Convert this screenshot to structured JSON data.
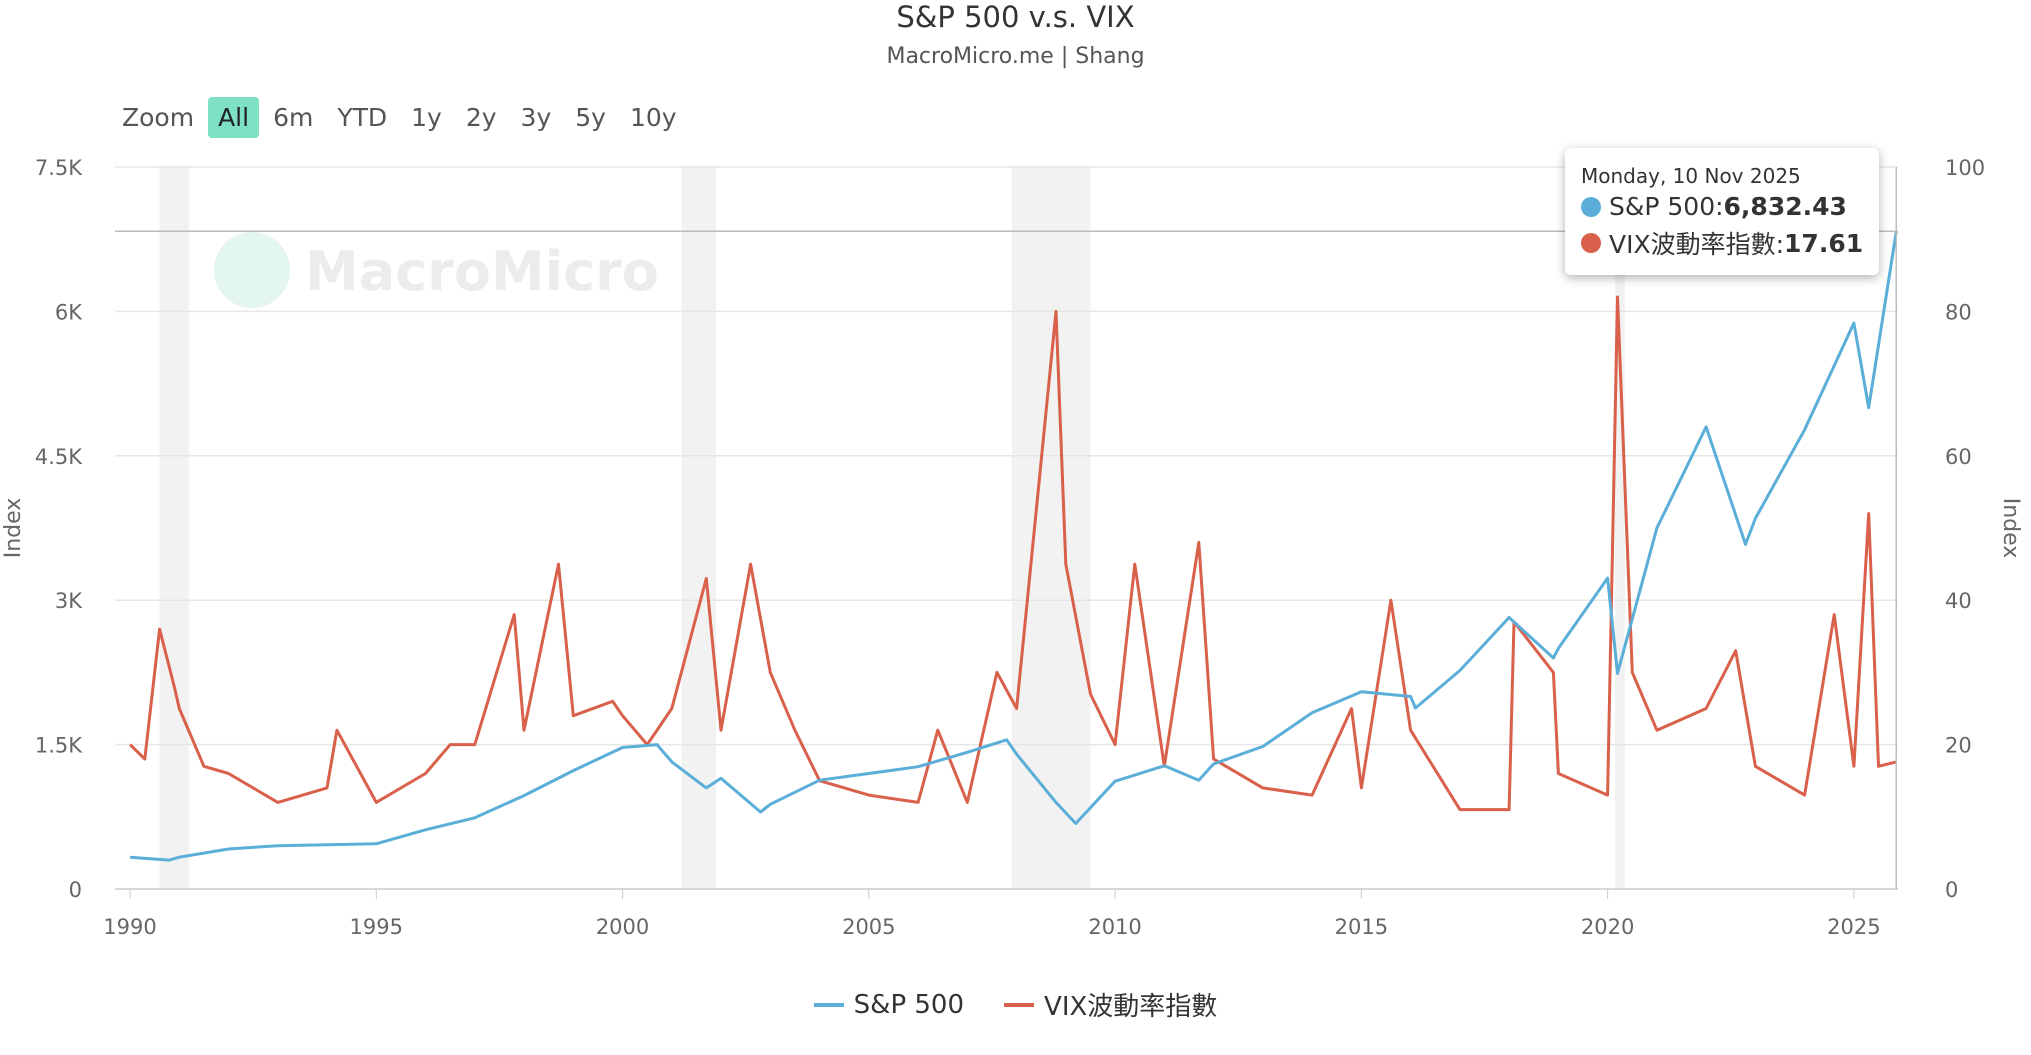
{
  "title": "S&P 500 v.s. VIX",
  "subtitle": "MacroMicro.me | Shang",
  "watermark": "MacroMicro",
  "range_selector": {
    "label": "Zoom",
    "buttons": [
      "All",
      "6m",
      "YTD",
      "1y",
      "2y",
      "3y",
      "5y",
      "10y"
    ],
    "selected": "All"
  },
  "tooltip": {
    "date": "Monday, 10 Nov 2025",
    "sp_label": "S&P 500: ",
    "sp_value": "6,832.43",
    "vix_label": "VIX波動率指數: ",
    "vix_value": "17.61"
  },
  "colors": {
    "sp500": "#5aaed8",
    "vix": "#d9604a",
    "recession": "#f2f2f2",
    "selected_button": "#7ee0c4"
  },
  "chart_data": {
    "type": "line",
    "x_ticks": [
      "1990",
      "1995",
      "2000",
      "2005",
      "2010",
      "2015",
      "2020",
      "2025"
    ],
    "xlim": [
      1990,
      2026.2
    ],
    "y_left": {
      "label": "Index",
      "ticks": [
        "0",
        "1.5K",
        "3K",
        "4.5K",
        "6K",
        "7.5K"
      ],
      "range": [
        0,
        7500
      ]
    },
    "y_right": {
      "label": "Index",
      "ticks": [
        "0",
        "20",
        "40",
        "60",
        "80",
        "100"
      ],
      "range": [
        0,
        100
      ]
    },
    "grid": true,
    "legend_placement": "bottom",
    "recession_bands": [
      [
        1990.6,
        1991.2
      ],
      [
        2001.2,
        2001.9
      ],
      [
        2007.9,
        2009.5
      ],
      [
        2020.15,
        2020.35
      ]
    ],
    "series": [
      {
        "name": "S&P 500",
        "axis": "left",
        "x": [
          1990,
          1990.8,
          1991,
          1992,
          1993,
          1994,
          1995,
          1996,
          1997,
          1998,
          1999,
          2000,
          2000.7,
          2001,
          2001.7,
          2002,
          2002.8,
          2003,
          2004,
          2005,
          2006,
          2007,
          2007.8,
          2008,
          2008.8,
          2009.2,
          2010,
          2011,
          2011.7,
          2012,
          2013,
          2014,
          2015,
          2016,
          2016.1,
          2017,
          2018,
          2018.9,
          2019,
          2020,
          2020.2,
          2021,
          2022,
          2022.8,
          2023,
          2024,
          2025,
          2025.3,
          2025.86
        ],
        "y": [
          330,
          300,
          330,
          415,
          450,
          460,
          470,
          615,
          740,
          970,
          1230,
          1470,
          1500,
          1320,
          1050,
          1150,
          800,
          880,
          1130,
          1200,
          1270,
          1420,
          1550,
          1400,
          900,
          680,
          1120,
          1280,
          1130,
          1300,
          1480,
          1830,
          2050,
          2000,
          1880,
          2270,
          2820,
          2400,
          2500,
          3230,
          2240,
          3750,
          4800,
          3580,
          3850,
          4770,
          5880,
          5000,
          6832.43
        ]
      },
      {
        "name": "VIX波動率指數",
        "axis": "right",
        "x": [
          1990,
          1990.3,
          1990.6,
          1990.9,
          1991,
          1991.5,
          1992,
          1993,
          1994,
          1994.2,
          1995,
          1996,
          1996.5,
          1997,
          1997.8,
          1998,
          1998.7,
          1999,
          1999.8,
          2000,
          2000.5,
          2001,
          2001.7,
          2002,
          2002.6,
          2003,
          2003.5,
          2004,
          2005,
          2006,
          2006.4,
          2007,
          2007.6,
          2008,
          2008.8,
          2009,
          2009.5,
          2010,
          2010.4,
          2011,
          2011.7,
          2012,
          2013,
          2014,
          2014.8,
          2015,
          2015.6,
          2016,
          2017,
          2018,
          2018.1,
          2018.9,
          2019,
          2020,
          2020.2,
          2020.5,
          2021,
          2022,
          2022.6,
          2023,
          2024,
          2024.6,
          2025,
          2025.3,
          2025.5,
          2025.86
        ],
        "y": [
          20,
          18,
          36,
          28,
          25,
          17,
          16,
          12,
          14,
          22,
          12,
          16,
          20,
          20,
          38,
          22,
          45,
          24,
          26,
          24,
          20,
          25,
          43,
          22,
          45,
          30,
          22,
          15,
          13,
          12,
          22,
          12,
          30,
          25,
          80,
          45,
          27,
          20,
          45,
          17,
          48,
          18,
          14,
          13,
          25,
          14,
          40,
          22,
          11,
          11,
          37,
          30,
          16,
          13,
          82,
          30,
          22,
          25,
          33,
          17,
          13,
          38,
          17,
          52,
          17,
          17.61
        ]
      }
    ]
  }
}
